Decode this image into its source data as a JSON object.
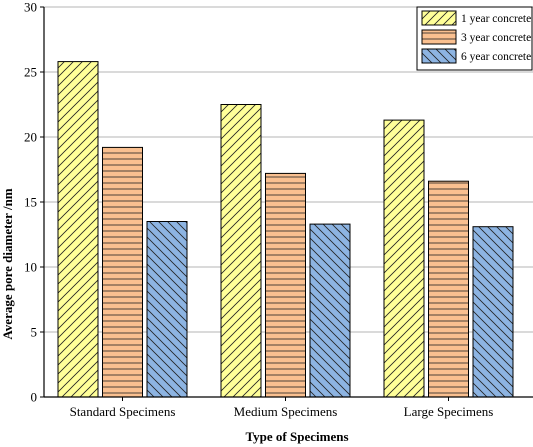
{
  "chart_data": {
    "type": "bar",
    "title": "",
    "xlabel": "Type of Specimens",
    "ylabel": "Average pore diameter /nm",
    "categories": [
      "Standard Specimens",
      "Medium Specimens",
      "Large Specimens"
    ],
    "series": [
      {
        "name": "1 year concrete",
        "values": [
          25.8,
          22.5,
          21.3
        ],
        "color": "#ffff99",
        "pattern": "diagonal-up"
      },
      {
        "name": "3 year concrete",
        "values": [
          19.2,
          17.2,
          16.6
        ],
        "color": "#fac090",
        "pattern": "horizontal"
      },
      {
        "name": "6 year concrete",
        "values": [
          13.5,
          13.3,
          13.1
        ],
        "color": "#8db4e2",
        "pattern": "diagonal-down"
      }
    ],
    "ylim": [
      0,
      30
    ],
    "yticks": [
      0,
      5,
      10,
      15,
      20,
      25,
      30
    ],
    "grid": true,
    "legend": "top-right"
  }
}
